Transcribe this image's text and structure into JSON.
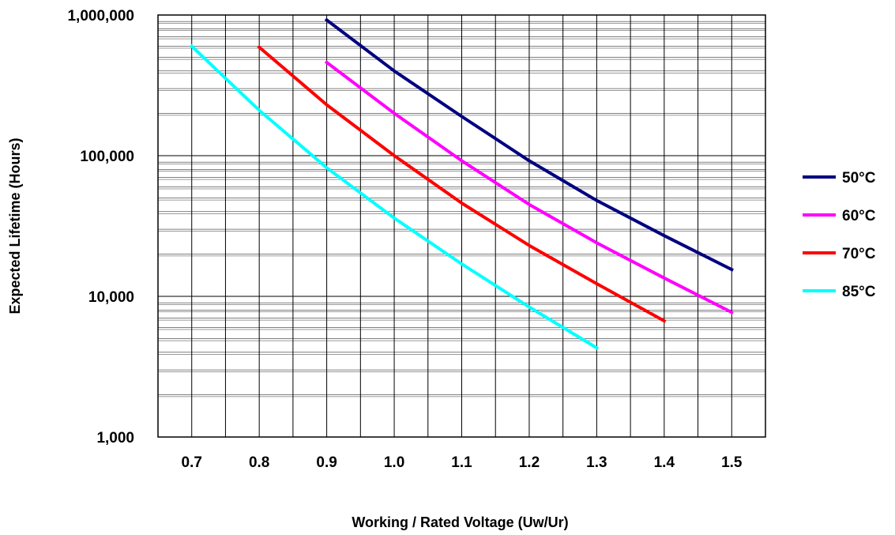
{
  "chart_data": {
    "type": "line",
    "title": "",
    "xlabel": "Working / Rated Voltage (Uw/Ur)",
    "ylabel": "Expected Lifetime (Hours)",
    "xlim": [
      0.65,
      1.55
    ],
    "ylim": [
      1000,
      1000000
    ],
    "yscale": "log",
    "grid": true,
    "legend_position": "right",
    "x_tick_labels": [
      "0.7",
      "0.8",
      "0.9",
      "1.0",
      "1.1",
      "1.2",
      "1.3",
      "1.4",
      "1.5"
    ],
    "x_ticks": [
      0.7,
      0.8,
      0.9,
      1.0,
      1.1,
      1.2,
      1.3,
      1.4,
      1.5
    ],
    "y_tick_labels": [
      "1,000",
      "10,000",
      "100,000",
      "1,000,000"
    ],
    "y_ticks": [
      1000,
      10000,
      100000,
      1000000
    ],
    "series": [
      {
        "name": "50°C",
        "color": "#000080",
        "x": [
          0.9,
          1.0,
          1.1,
          1.2,
          1.3,
          1.4,
          1.5
        ],
        "y": [
          920000,
          400000,
          190000,
          92000,
          48000,
          27000,
          15500
        ]
      },
      {
        "name": "60°C",
        "color": "#FF00FF",
        "x": [
          0.9,
          1.0,
          1.1,
          1.2,
          1.3,
          1.4,
          1.5
        ],
        "y": [
          460000,
          200000,
          92000,
          45000,
          24000,
          13500,
          7700
        ]
      },
      {
        "name": "70°C",
        "color": "#FF0000",
        "x": [
          0.8,
          0.9,
          1.0,
          1.1,
          1.2,
          1.3,
          1.4
        ],
        "y": [
          590000,
          230000,
          100000,
          46000,
          23000,
          12300,
          6700
        ]
      },
      {
        "name": "85°C",
        "color": "#00FFFF",
        "x": [
          0.7,
          0.8,
          0.9,
          1.0,
          1.1,
          1.2,
          1.3
        ],
        "y": [
          600000,
          210000,
          82000,
          36000,
          17000,
          8400,
          4300
        ]
      }
    ]
  }
}
